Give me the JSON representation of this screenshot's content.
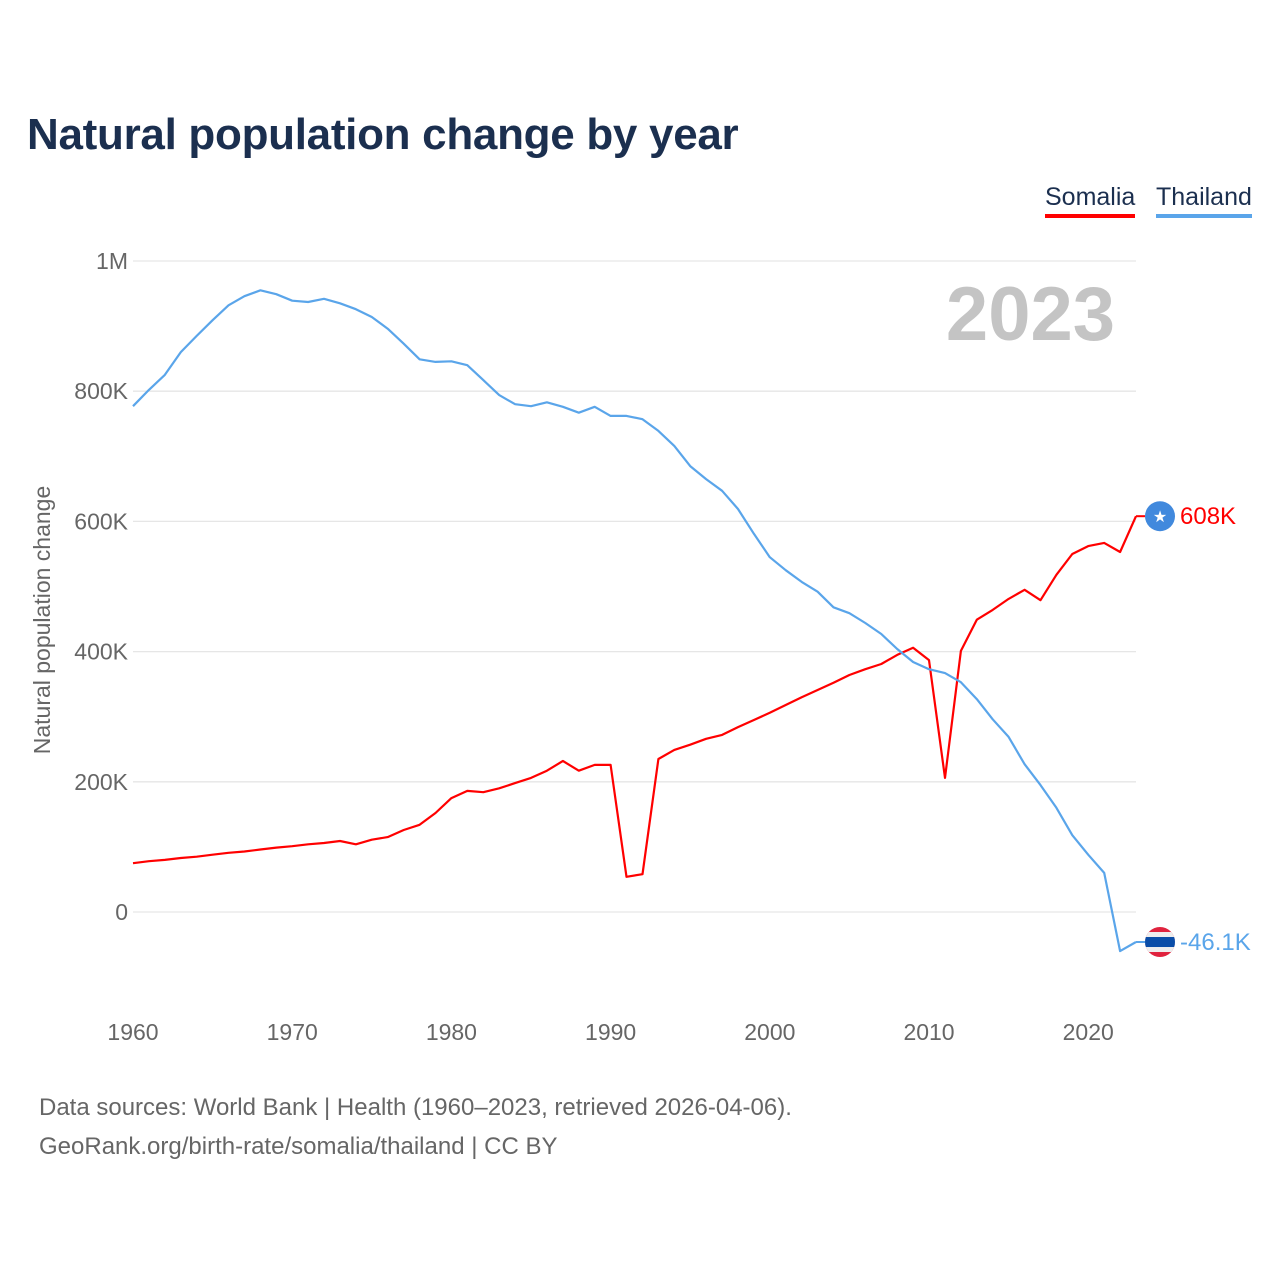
{
  "title": "Natural population change by year",
  "legend": [
    {
      "label": "Somalia",
      "color": "#ff0000"
    },
    {
      "label": "Thailand",
      "color": "#5aa5ea"
    }
  ],
  "footer": {
    "line1": "Data sources: World Bank | Health (1960–2023, retrieved 2026-04-06).",
    "line2": "GeoRank.org/birth-rate/somalia/thailand | CC BY"
  },
  "chart_data": {
    "type": "line",
    "title": "Natural population change by year",
    "xlabel": "",
    "ylabel": "Natural population change",
    "year_watermark": "2023",
    "xlim": [
      1960,
      2023
    ],
    "ylim": [
      -100000,
      1000000
    ],
    "x_ticks": [
      "1960",
      "1970",
      "1980",
      "1990",
      "2000",
      "2010",
      "2020"
    ],
    "y_ticks": [
      {
        "v": 0,
        "label": "0"
      },
      {
        "v": 200000,
        "label": "200K"
      },
      {
        "v": 400000,
        "label": "400K"
      },
      {
        "v": 600000,
        "label": "600K"
      },
      {
        "v": 800000,
        "label": "800K"
      },
      {
        "v": 1000000,
        "label": "1M"
      }
    ],
    "x_start": 1960,
    "series": [
      {
        "name": "Somalia",
        "color": "#ff0000",
        "icon": "somalia-flag-icon",
        "end_label": "608K",
        "values_k": [
          75,
          78,
          80,
          83,
          85,
          88,
          91,
          93,
          96,
          99,
          101,
          104,
          106,
          109,
          104,
          111,
          115,
          126,
          134,
          152,
          175,
          186,
          184,
          190,
          198,
          206,
          217,
          232,
          217,
          226,
          226,
          54,
          58,
          235,
          249,
          257,
          266,
          272,
          284,
          295,
          306,
          318,
          330,
          341,
          352,
          364,
          373,
          381,
          395,
          406,
          387,
          206,
          401,
          449,
          464,
          481,
          495,
          479,
          518,
          550,
          562,
          567,
          553,
          608
        ]
      },
      {
        "name": "Thailand",
        "color": "#5aa5ea",
        "icon": "thailand-flag-icon",
        "end_label": "-46.1K",
        "values_k": [
          777,
          802,
          825,
          860,
          885,
          909,
          932,
          946,
          955,
          949,
          939,
          937,
          942,
          935,
          926,
          914,
          896,
          873,
          849,
          845,
          846,
          840,
          817,
          794,
          780,
          777,
          783,
          776,
          767,
          776,
          762,
          762,
          757,
          739,
          716,
          685,
          665,
          647,
          619,
          581,
          545,
          525,
          507,
          492,
          468,
          459,
          444,
          427,
          404,
          384,
          373,
          367,
          353,
          327,
          296,
          269,
          227,
          195,
          160,
          118,
          88,
          60,
          -60,
          -46.1
        ]
      }
    ],
    "grid": true,
    "legend_position": "top-right"
  }
}
